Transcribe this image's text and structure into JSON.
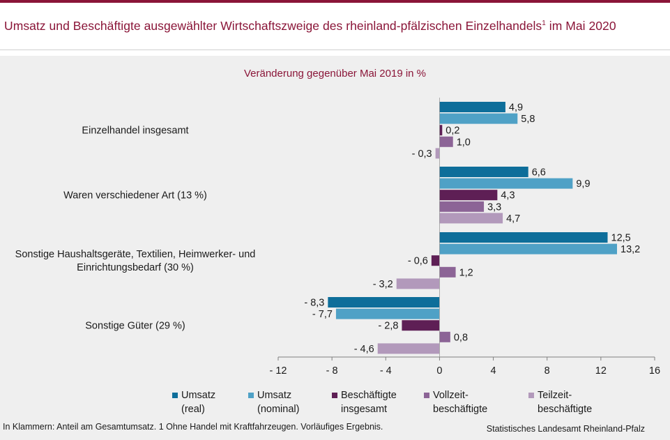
{
  "header": {
    "title": "Umsatz und Beschäftigte ausgewählter Wirtschaftszweige des rheinland-pfälzischen Einzelhandels",
    "title_sup": "1",
    "title_suffix": " im Mai 2020"
  },
  "chart_data": {
    "type": "bar",
    "orientation": "horizontal",
    "subtitle": "Veränderung gegenüber Mai 2019 in %",
    "categories": [
      [
        "Einzelhandel insgesamt"
      ],
      [
        "Waren verschiedener Art (13 %)"
      ],
      [
        "Sonstige Haushaltsgeräte, Textilien, Heimwerker- und",
        "Einrichtungsbedarf (30 %)"
      ],
      [
        "Sonstige Güter (29 %)"
      ]
    ],
    "series": [
      {
        "name": "Umsatz (real)",
        "legend_lines": [
          "Umsatz",
          "(real)"
        ],
        "color": "#0e6e9a",
        "values": [
          4.9,
          6.6,
          12.5,
          -8.3
        ]
      },
      {
        "name": "Umsatz (nominal)",
        "legend_lines": [
          "Umsatz",
          "(nominal)"
        ],
        "color": "#4fa1c6",
        "values": [
          5.8,
          9.9,
          13.2,
          -7.7
        ]
      },
      {
        "name": "Beschäftigte insgesamt",
        "legend_lines": [
          "Beschäftigte",
          "insgesamt"
        ],
        "color": "#5e1f55",
        "values": [
          0.2,
          4.3,
          -0.6,
          -2.8
        ]
      },
      {
        "name": "Vollzeitbeschäftigte",
        "legend_lines": [
          "Vollzeit-",
          "beschäftigte"
        ],
        "color": "#8c6496",
        "values": [
          1.0,
          3.3,
          1.2,
          0.8
        ]
      },
      {
        "name": "Teilzeitbeschäftigte",
        "legend_lines": [
          "Teilzeit-",
          "beschäftigte"
        ],
        "color": "#b299bb",
        "values": [
          -0.3,
          4.7,
          -3.2,
          -4.6
        ]
      }
    ],
    "xlim": [
      -12,
      16
    ],
    "xticks": [
      -12,
      -8,
      -4,
      0,
      4,
      8,
      12,
      16
    ],
    "grid": false,
    "legend_position": "bottom"
  },
  "footer": {
    "note": "In Klammern: Anteil am Gesamtumsatz. 1 Ohne Handel mit Kraftfahrzeugen. Vorläufiges Ergebnis.",
    "source": "Statistisches Landesamt Rheinland-Pfalz"
  }
}
